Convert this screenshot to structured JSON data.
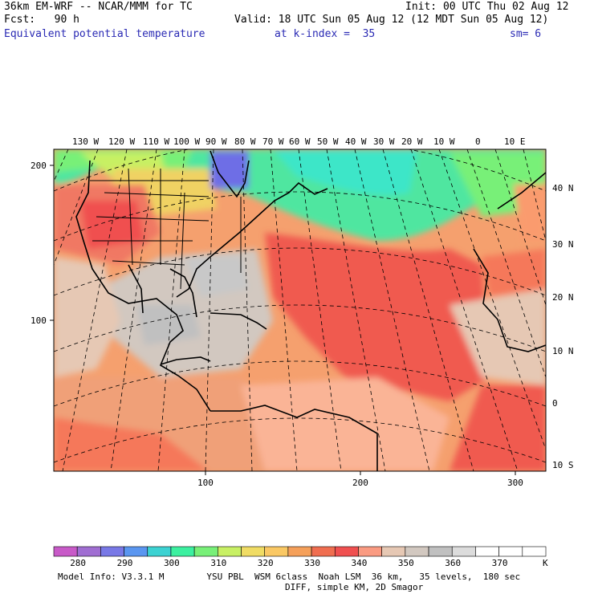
{
  "header": {
    "model": "36km EM-WRF -- NCAR/MMM for TC",
    "init": "Init: 00 UTC Thu 02 Aug 12",
    "fcst": "Fcst:   90 h",
    "valid": "Valid: 18 UTC Sun 05 Aug 12 (12 MDT Sun 05 Aug 12)",
    "field": "Equivalent potential temperature",
    "kindex": "at k-index =  35",
    "smooth": "sm= 6"
  },
  "map": {
    "top_lon_labels": [
      "130 W",
      "120 W",
      "110 W",
      "100 W",
      "90 W",
      "80 W",
      "70 W",
      "60 W",
      "50 W",
      "40 W",
      "30 W",
      "20 W",
      "10 W",
      "0",
      "10 E"
    ],
    "right_lat_labels": [
      "40 N",
      "30 N",
      "20 N",
      "10 N",
      "0",
      "10 S"
    ],
    "left_grid_labels": [
      "200",
      "100"
    ],
    "bottom_grid_labels": [
      "100",
      "200",
      "300"
    ]
  },
  "colorbar": {
    "labels": [
      "280",
      "290",
      "300",
      "310",
      "320",
      "330",
      "340",
      "350",
      "360",
      "370"
    ],
    "unit": "K",
    "colors": [
      "#c85ac8",
      "#a06ed2",
      "#7878e6",
      "#5a96f0",
      "#3cd2d2",
      "#3cf0a0",
      "#78f078",
      "#c8f064",
      "#f0dc64",
      "#fac864",
      "#f5a05a",
      "#f06e50",
      "#f05050",
      "#fa9b82",
      "#e6c8b4",
      "#d2c8c0",
      "#c0c0c0",
      "#dcdcdc",
      "#ffffff",
      "#ffffff",
      "#ffffff"
    ]
  },
  "footer": {
    "line1": "Model Info: V3.3.1 M        YSU PBL  WSM 6class  Noah LSM  36 km,   35 levels,  180 sec",
    "line2": "DIFF, simple KM, 2D Smagor"
  }
}
